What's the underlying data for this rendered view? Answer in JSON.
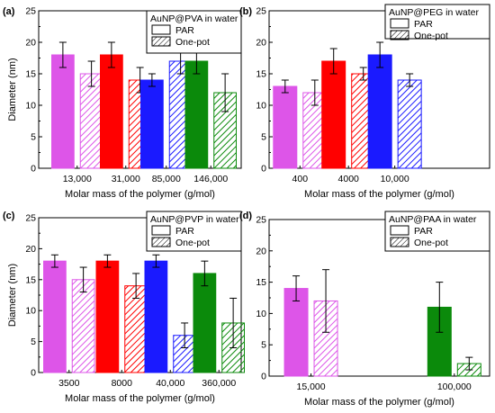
{
  "colors": {
    "PVA": [
      "#dd55e8",
      "#ff0000",
      "#1a1aff",
      "#0b8a0b"
    ],
    "PEG": [
      "#dd55e8",
      "#ff0000",
      "#1a1aff"
    ],
    "PVP": [
      "#dd55e8",
      "#ff0000",
      "#1a1aff",
      "#0b8a0b"
    ],
    "PAA": [
      "#dd55e8",
      "#0b8a0b"
    ]
  },
  "chart_data": [
    {
      "type": "bar",
      "panel": "(a)",
      "legend_title": "AuNP@PVA in water",
      "legend_placement": "top-right",
      "categories": [
        "13,000",
        "31,000",
        "85,000",
        "146,000"
      ],
      "xlabel": "Molar mass of the polymer (g/mol)",
      "ylabel": "Diameter (nm)",
      "ylim": [
        0,
        25
      ],
      "yticks": [
        "0",
        "5",
        "10",
        "15",
        "20",
        "25"
      ],
      "series": [
        {
          "name": "PAR",
          "values": [
            18,
            18,
            14,
            17
          ],
          "errors": [
            2,
            2,
            1,
            2
          ]
        },
        {
          "name": "One-pot",
          "values": [
            15,
            14,
            17,
            12
          ],
          "errors": [
            2,
            2,
            2,
            3
          ]
        }
      ]
    },
    {
      "type": "bar",
      "panel": "(b)",
      "legend_title": "AuNP@PEG in water",
      "legend_placement": "top-right",
      "categories": [
        "400",
        "4000",
        "10,000"
      ],
      "xlabel": "Molar mass of the polymer (g/mol)",
      "ylabel": "",
      "ylim": [
        0,
        25
      ],
      "yticks": [
        "0",
        "5",
        "10",
        "15",
        "20",
        "25"
      ],
      "series": [
        {
          "name": "PAR",
          "values": [
            13,
            17,
            18
          ],
          "errors": [
            1,
            2,
            2
          ]
        },
        {
          "name": "One-pot",
          "values": [
            12,
            15,
            14
          ],
          "errors": [
            2,
            1,
            1
          ]
        }
      ]
    },
    {
      "type": "bar",
      "panel": "(c)",
      "legend_title": "AuNP@PVP in water",
      "legend_placement": "top-right",
      "categories": [
        "3500",
        "8000",
        "40,000",
        "360,000"
      ],
      "xlabel": "Molar mass of the polymer (g/mol)",
      "ylabel": "Diameter (nm)",
      "ylim": [
        0,
        25
      ],
      "yticks": [
        "0",
        "5",
        "10",
        "15",
        "20",
        "25"
      ],
      "series": [
        {
          "name": "PAR",
          "values": [
            18,
            18,
            18,
            16
          ],
          "errors": [
            1,
            1,
            1,
            2
          ]
        },
        {
          "name": "One-pot",
          "values": [
            15,
            14,
            6,
            8
          ],
          "errors": [
            2,
            2,
            2,
            4
          ]
        }
      ]
    },
    {
      "type": "bar",
      "panel": "(d)",
      "legend_title": "AuNP@PAA in water",
      "legend_placement": "top-right",
      "categories": [
        "15,000",
        "100,000"
      ],
      "xlabel": "Molar mass of the polymer (g/mol)",
      "ylabel": "",
      "ylim": [
        0,
        25
      ],
      "yticks": [
        "0",
        "5",
        "10",
        "15",
        "20",
        "25"
      ],
      "series": [
        {
          "name": "PAR",
          "values": [
            14,
            11
          ],
          "errors": [
            2,
            4
          ]
        },
        {
          "name": "One-pot",
          "values": [
            12,
            2
          ],
          "errors": [
            5,
            1
          ]
        }
      ]
    }
  ]
}
